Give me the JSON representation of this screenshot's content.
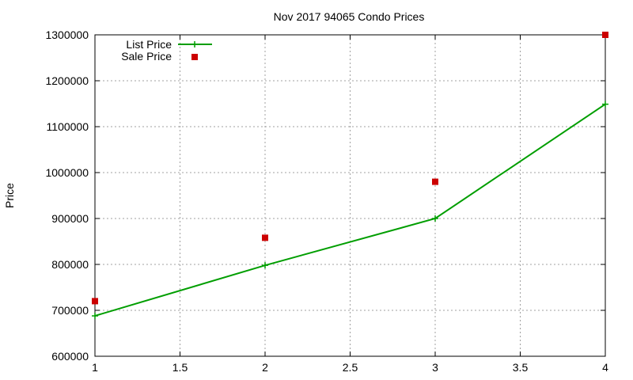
{
  "chart_data": {
    "type": "line",
    "title": "Nov 2017 94065 Condo Prices",
    "xlabel": "",
    "ylabel": "Price",
    "xlim": [
      1,
      4
    ],
    "ylim": [
      600000,
      1300000
    ],
    "xticks": [
      "1",
      "1.5",
      "2",
      "2.5",
      "3",
      "3.5",
      "4"
    ],
    "xtick_values": [
      1,
      1.5,
      2,
      2.5,
      3,
      3.5,
      4
    ],
    "yticks": [
      "600000",
      "700000",
      "800000",
      "900000",
      "1000000",
      "1100000",
      "1200000",
      "1300000"
    ],
    "ytick_values": [
      600000,
      700000,
      800000,
      900000,
      1000000,
      1100000,
      1200000,
      1300000
    ],
    "grid": true,
    "legend_position": "top-left",
    "series": [
      {
        "name": "List Price",
        "style": "line-with-plus-markers",
        "color": "#009e00",
        "x": [
          1,
          2,
          3,
          4
        ],
        "y": [
          688000,
          798000,
          900000,
          1149000
        ]
      },
      {
        "name": "Sale Price",
        "style": "square-points",
        "color": "#cc0000",
        "x": [
          1,
          2,
          3,
          4
        ],
        "y": [
          720000,
          858000,
          980000,
          1300000
        ]
      }
    ]
  }
}
